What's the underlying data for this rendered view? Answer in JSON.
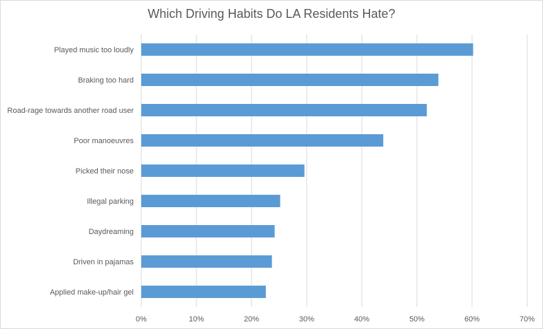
{
  "chart_data": {
    "type": "bar",
    "orientation": "horizontal",
    "title": "Which Driving Habits Do LA Residents Hate?",
    "categories": [
      "Played music too loudly",
      "Braking too hard",
      "Road-rage towards another road user",
      "Poor manoeuvres",
      "Picked their nose",
      "Illegal parking",
      "Daydreaming",
      "Driven in pajamas",
      "Applied make-up/hair gel"
    ],
    "values": [
      60.2,
      53.9,
      51.8,
      43.9,
      29.6,
      25.2,
      24.2,
      23.7,
      22.6
    ],
    "xlim": [
      0,
      70
    ],
    "x_ticks": [
      0,
      10,
      20,
      30,
      40,
      50,
      60,
      70
    ],
    "x_tick_labels": [
      "0%",
      "10%",
      "20%",
      "30%",
      "40%",
      "50%",
      "60%",
      "70%"
    ],
    "xlabel": "",
    "ylabel": "",
    "grid": "vertical",
    "legend": "none",
    "bar_color": "#5b9bd5",
    "grid_color": "#d9d9d9"
  }
}
